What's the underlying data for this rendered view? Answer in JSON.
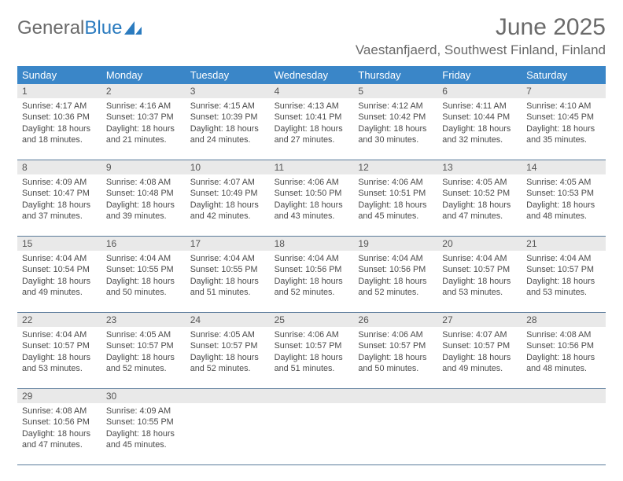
{
  "brand": {
    "part1": "General",
    "part2": "Blue"
  },
  "title": "June 2025",
  "location": "Vaestanfjaerd, Southwest Finland, Finland",
  "colors": {
    "header_bg": "#3a86c8",
    "header_fg": "#ffffff",
    "daynum_bg": "#e9e9e9",
    "text": "#4a4a4a",
    "rule": "#5a7a9a"
  },
  "day_labels": [
    "Sunday",
    "Monday",
    "Tuesday",
    "Wednesday",
    "Thursday",
    "Friday",
    "Saturday"
  ],
  "weeks": [
    [
      {
        "n": "1",
        "sr": "4:17 AM",
        "ss": "10:36 PM",
        "dl": "18 hours and 18 minutes."
      },
      {
        "n": "2",
        "sr": "4:16 AM",
        "ss": "10:37 PM",
        "dl": "18 hours and 21 minutes."
      },
      {
        "n": "3",
        "sr": "4:15 AM",
        "ss": "10:39 PM",
        "dl": "18 hours and 24 minutes."
      },
      {
        "n": "4",
        "sr": "4:13 AM",
        "ss": "10:41 PM",
        "dl": "18 hours and 27 minutes."
      },
      {
        "n": "5",
        "sr": "4:12 AM",
        "ss": "10:42 PM",
        "dl": "18 hours and 30 minutes."
      },
      {
        "n": "6",
        "sr": "4:11 AM",
        "ss": "10:44 PM",
        "dl": "18 hours and 32 minutes."
      },
      {
        "n": "7",
        "sr": "4:10 AM",
        "ss": "10:45 PM",
        "dl": "18 hours and 35 minutes."
      }
    ],
    [
      {
        "n": "8",
        "sr": "4:09 AM",
        "ss": "10:47 PM",
        "dl": "18 hours and 37 minutes."
      },
      {
        "n": "9",
        "sr": "4:08 AM",
        "ss": "10:48 PM",
        "dl": "18 hours and 39 minutes."
      },
      {
        "n": "10",
        "sr": "4:07 AM",
        "ss": "10:49 PM",
        "dl": "18 hours and 42 minutes."
      },
      {
        "n": "11",
        "sr": "4:06 AM",
        "ss": "10:50 PM",
        "dl": "18 hours and 43 minutes."
      },
      {
        "n": "12",
        "sr": "4:06 AM",
        "ss": "10:51 PM",
        "dl": "18 hours and 45 minutes."
      },
      {
        "n": "13",
        "sr": "4:05 AM",
        "ss": "10:52 PM",
        "dl": "18 hours and 47 minutes."
      },
      {
        "n": "14",
        "sr": "4:05 AM",
        "ss": "10:53 PM",
        "dl": "18 hours and 48 minutes."
      }
    ],
    [
      {
        "n": "15",
        "sr": "4:04 AM",
        "ss": "10:54 PM",
        "dl": "18 hours and 49 minutes."
      },
      {
        "n": "16",
        "sr": "4:04 AM",
        "ss": "10:55 PM",
        "dl": "18 hours and 50 minutes."
      },
      {
        "n": "17",
        "sr": "4:04 AM",
        "ss": "10:55 PM",
        "dl": "18 hours and 51 minutes."
      },
      {
        "n": "18",
        "sr": "4:04 AM",
        "ss": "10:56 PM",
        "dl": "18 hours and 52 minutes."
      },
      {
        "n": "19",
        "sr": "4:04 AM",
        "ss": "10:56 PM",
        "dl": "18 hours and 52 minutes."
      },
      {
        "n": "20",
        "sr": "4:04 AM",
        "ss": "10:57 PM",
        "dl": "18 hours and 53 minutes."
      },
      {
        "n": "21",
        "sr": "4:04 AM",
        "ss": "10:57 PM",
        "dl": "18 hours and 53 minutes."
      }
    ],
    [
      {
        "n": "22",
        "sr": "4:04 AM",
        "ss": "10:57 PM",
        "dl": "18 hours and 53 minutes."
      },
      {
        "n": "23",
        "sr": "4:05 AM",
        "ss": "10:57 PM",
        "dl": "18 hours and 52 minutes."
      },
      {
        "n": "24",
        "sr": "4:05 AM",
        "ss": "10:57 PM",
        "dl": "18 hours and 52 minutes."
      },
      {
        "n": "25",
        "sr": "4:06 AM",
        "ss": "10:57 PM",
        "dl": "18 hours and 51 minutes."
      },
      {
        "n": "26",
        "sr": "4:06 AM",
        "ss": "10:57 PM",
        "dl": "18 hours and 50 minutes."
      },
      {
        "n": "27",
        "sr": "4:07 AM",
        "ss": "10:57 PM",
        "dl": "18 hours and 49 minutes."
      },
      {
        "n": "28",
        "sr": "4:08 AM",
        "ss": "10:56 PM",
        "dl": "18 hours and 48 minutes."
      }
    ],
    [
      {
        "n": "29",
        "sr": "4:08 AM",
        "ss": "10:56 PM",
        "dl": "18 hours and 47 minutes."
      },
      {
        "n": "30",
        "sr": "4:09 AM",
        "ss": "10:55 PM",
        "dl": "18 hours and 45 minutes."
      },
      null,
      null,
      null,
      null,
      null
    ]
  ],
  "labels": {
    "sunrise": "Sunrise:",
    "sunset": "Sunset:",
    "daylight": "Daylight:"
  }
}
